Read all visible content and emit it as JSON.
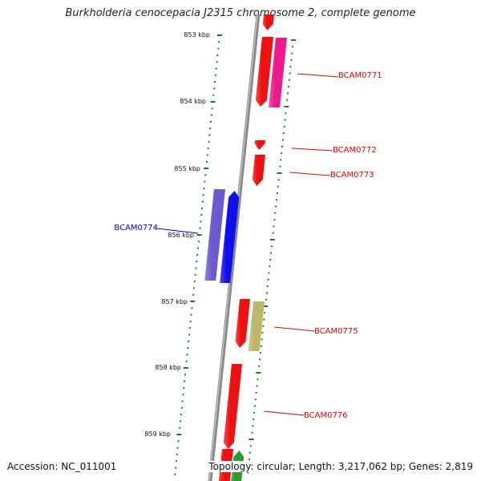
{
  "title": "Burkholderia cenocepacia J2315 chromosome 2, complete genome",
  "accession": "Accession: NC_011001",
  "summary": "Topology: circular; Length: 3,217,062 bp; Genes: 2,819",
  "colors": {
    "backbone": "#8a8a8a",
    "tick": "#1a7a1a",
    "gene_red": "#ee1111",
    "gene_pink": "#ee1a8c",
    "gene_blue": "#1010ee",
    "gene_slate": "#6a5acd",
    "gene_khaki": "#bdb76b",
    "gene_green": "#2a9a2a",
    "label_red": "#dd0000",
    "label_blue": "#0000cc"
  },
  "scale_labels": [
    "853 kbp",
    "854 kbp",
    "855 kbp",
    "856 kbp",
    "857 kbp",
    "858 kbp",
    "859 kbp"
  ],
  "gene_labels": [
    {
      "text": "BCAM0771",
      "color": "label_red"
    },
    {
      "text": "BCAM0772",
      "color": "label_red"
    },
    {
      "text": "BCAM0773",
      "color": "label_red"
    },
    {
      "text": "BCAM0774",
      "color": "label_blue"
    },
    {
      "text": "BCAM0775",
      "color": "label_red"
    },
    {
      "text": "BCAM0776",
      "color": "label_red"
    }
  ]
}
